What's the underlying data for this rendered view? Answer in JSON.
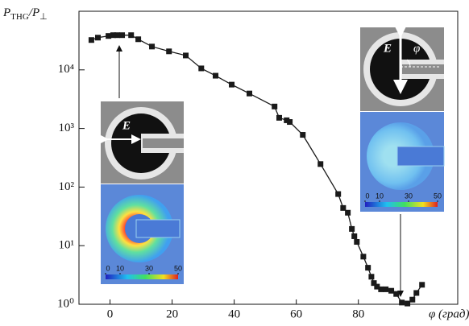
{
  "chart_data": {
    "type": "line",
    "ylabel_parts": [
      "P",
      "THG",
      "/P",
      "⊥"
    ],
    "xlabel": "φ (град)",
    "x": [
      -6.0,
      -3.9,
      -0.5,
      1.0,
      2.3,
      3.9,
      6.8,
      9.1,
      13.5,
      19.0,
      24.4,
      29.4,
      34.0,
      39.2,
      44.9,
      53.0,
      54.5,
      56.9,
      57.9,
      62.1,
      67.8,
      73.5,
      75.1,
      76.6,
      77.9,
      78.7,
      79.5,
      81.6,
      83.1,
      84.2,
      85.0,
      86.0,
      87.3,
      88.8,
      90.6,
      92.2,
      94.0,
      95.8,
      97.4,
      98.7,
      100.5
    ],
    "series": [
      {
        "color": "#1a1a1a",
        "values": [
          32300,
          35500,
          37900,
          39100,
          39100,
          39100,
          39100,
          33300,
          25000,
          20700,
          17600,
          10600,
          7950,
          5600,
          3950,
          2370,
          1520,
          1380,
          1290,
          778,
          247,
          76,
          44,
          36.5,
          19.3,
          14.5,
          11.6,
          6.5,
          4.2,
          2.95,
          2.3,
          2.0,
          1.8,
          1.8,
          1.7,
          1.5,
          1.07,
          1.03,
          1.2,
          1.56,
          2.15
        ]
      }
    ],
    "xlim": [
      -10,
      112
    ],
    "xticks": [
      0,
      20,
      40,
      60,
      80
    ],
    "ylim": [
      1,
      100000
    ],
    "log_y": true,
    "yticks": [
      {
        "value": 1,
        "label": "10⁰"
      },
      {
        "value": 10,
        "label": "10¹"
      },
      {
        "value": 100,
        "label": "10²"
      },
      {
        "value": 1000,
        "label": "10³"
      },
      {
        "value": 10000,
        "label": "10⁴"
      }
    ],
    "insets": {
      "field_label": "E",
      "angle_label": "φ",
      "colorbar_lim": [
        0,
        50
      ],
      "colorbar_ticks": [
        0,
        10,
        30,
        50
      ]
    }
  }
}
